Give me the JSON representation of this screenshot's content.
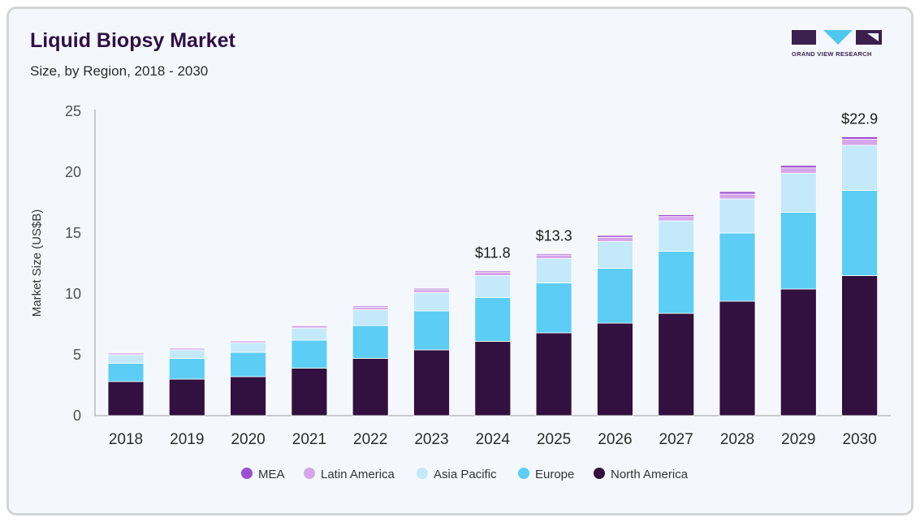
{
  "header": {
    "title": "Liquid Biopsy Market",
    "subtitle": "Size, by Region, 2018 - 2030",
    "logo_text": "GRAND VIEW RESEARCH"
  },
  "colors": {
    "MEA": "#9b4fd1",
    "Latin America": "#d7a6ea",
    "Asia Pacific": "#c3e9fa",
    "Europe": "#5ccdf5",
    "North America": "#32103f"
  },
  "chart_data": {
    "type": "bar",
    "stacked": true,
    "title": "Liquid Biopsy Market",
    "subtitle": "Size, by Region, 2018 - 2030",
    "xlabel": "",
    "ylabel": "Market Size (US$B)",
    "ylim": [
      0,
      25
    ],
    "yticks": [
      0,
      5,
      10,
      15,
      20,
      25
    ],
    "grid": false,
    "legend_position": "bottom",
    "categories": [
      "2018",
      "2019",
      "2020",
      "2021",
      "2022",
      "2023",
      "2024",
      "2025",
      "2026",
      "2027",
      "2028",
      "2029",
      "2030"
    ],
    "series": [
      {
        "name": "North America",
        "values": [
          2.8,
          3.0,
          3.2,
          3.9,
          4.7,
          5.4,
          6.1,
          6.8,
          7.6,
          8.4,
          9.4,
          10.4,
          11.5
        ]
      },
      {
        "name": "Europe",
        "values": [
          1.5,
          1.7,
          2.0,
          2.3,
          2.7,
          3.2,
          3.6,
          4.1,
          4.5,
          5.1,
          5.6,
          6.3,
          7.0
        ]
      },
      {
        "name": "Asia Pacific",
        "values": [
          0.7,
          0.7,
          0.8,
          1.0,
          1.3,
          1.5,
          1.8,
          2.0,
          2.2,
          2.5,
          2.8,
          3.2,
          3.7
        ]
      },
      {
        "name": "Latin America",
        "values": [
          0.15,
          0.15,
          0.15,
          0.2,
          0.2,
          0.25,
          0.3,
          0.3,
          0.35,
          0.35,
          0.4,
          0.45,
          0.5
        ]
      },
      {
        "name": "MEA",
        "values": [
          0.05,
          0.05,
          0.05,
          0.05,
          0.1,
          0.1,
          0.1,
          0.1,
          0.15,
          0.15,
          0.2,
          0.2,
          0.2
        ]
      }
    ],
    "legend_order": [
      "MEA",
      "Latin America",
      "Asia Pacific",
      "Europe",
      "North America"
    ],
    "data_labels": [
      {
        "category": "2024",
        "text": "$11.8"
      },
      {
        "category": "2025",
        "text": "$13.3"
      },
      {
        "category": "2030",
        "text": "$22.9"
      }
    ]
  }
}
